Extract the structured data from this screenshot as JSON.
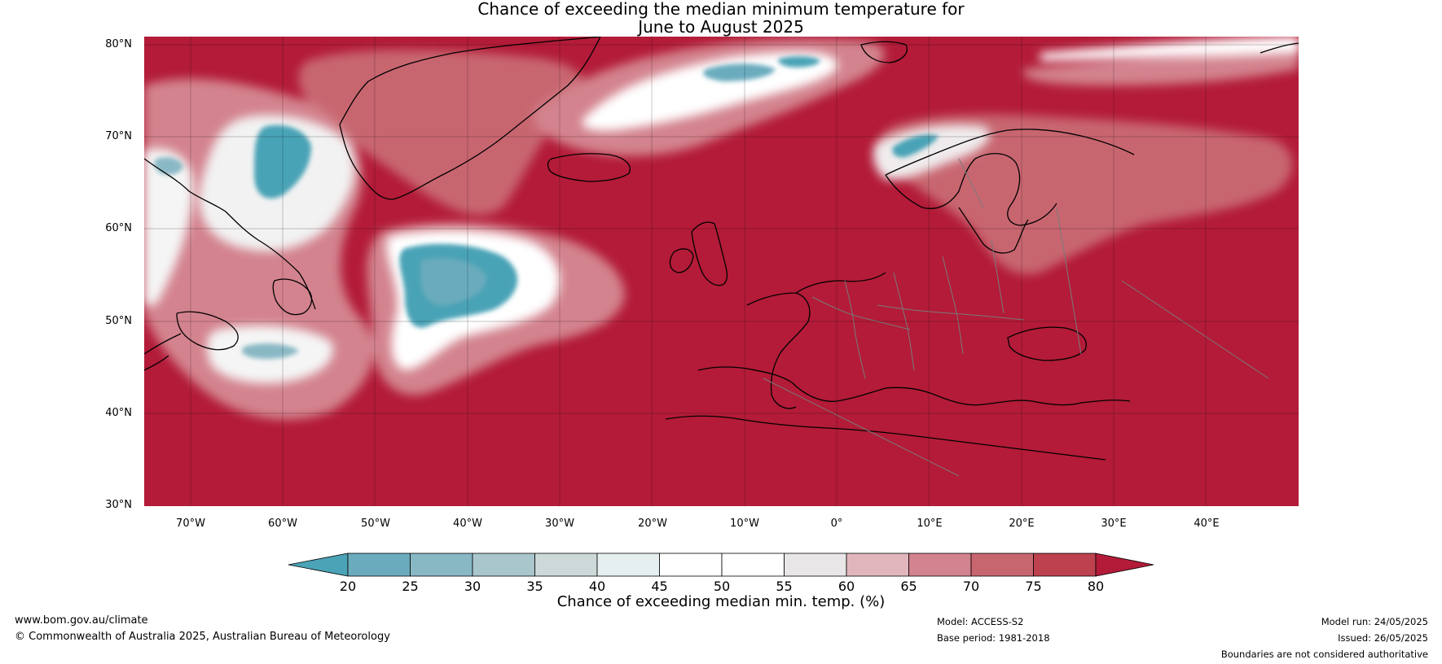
{
  "title": {
    "line1": "Chance of exceeding the median minimum temperature for",
    "line2": "June to August 2025"
  },
  "axes": {
    "lat_ticks": [
      "80°N",
      "70°N",
      "60°N",
      "50°N",
      "40°N",
      "30°N"
    ],
    "lon_ticks": [
      "70°W",
      "60°W",
      "50°W",
      "40°W",
      "30°W",
      "20°W",
      "10°W",
      "0°",
      "10°E",
      "20°E",
      "30°E",
      "40°E"
    ],
    "lat_range": [
      30,
      81
    ],
    "lon_range": [
      -75,
      50
    ]
  },
  "colorbar": {
    "label": "Chance of exceeding median min. temp. (%)",
    "ticks": [
      "20",
      "25",
      "30",
      "35",
      "40",
      "45",
      "50",
      "55",
      "60",
      "65",
      "70",
      "75",
      "80"
    ],
    "colors": [
      "#4aa3b6",
      "#6aacbd",
      "#89b8c5",
      "#aac6cd",
      "#cdd8d9",
      "#e6eff0",
      "#ffffff",
      "#ffffff",
      "#e8e6e7",
      "#e0b6bc",
      "#d3838e",
      "#c86670",
      "#bd414f",
      "#b31b38"
    ]
  },
  "footer": {
    "website": "www.bom.gov.au/climate",
    "copyright": "© Commonwealth of Australia 2025, Australian Bureau of Meteorology",
    "model": "Model: ACCESS-S2",
    "base_period": "Base period: 1981-2018",
    "model_run": "Model run: 24/05/2025",
    "issued": "Issued: 26/05/2025",
    "disclaimer": "Boundaries are not considered authoritative"
  }
}
